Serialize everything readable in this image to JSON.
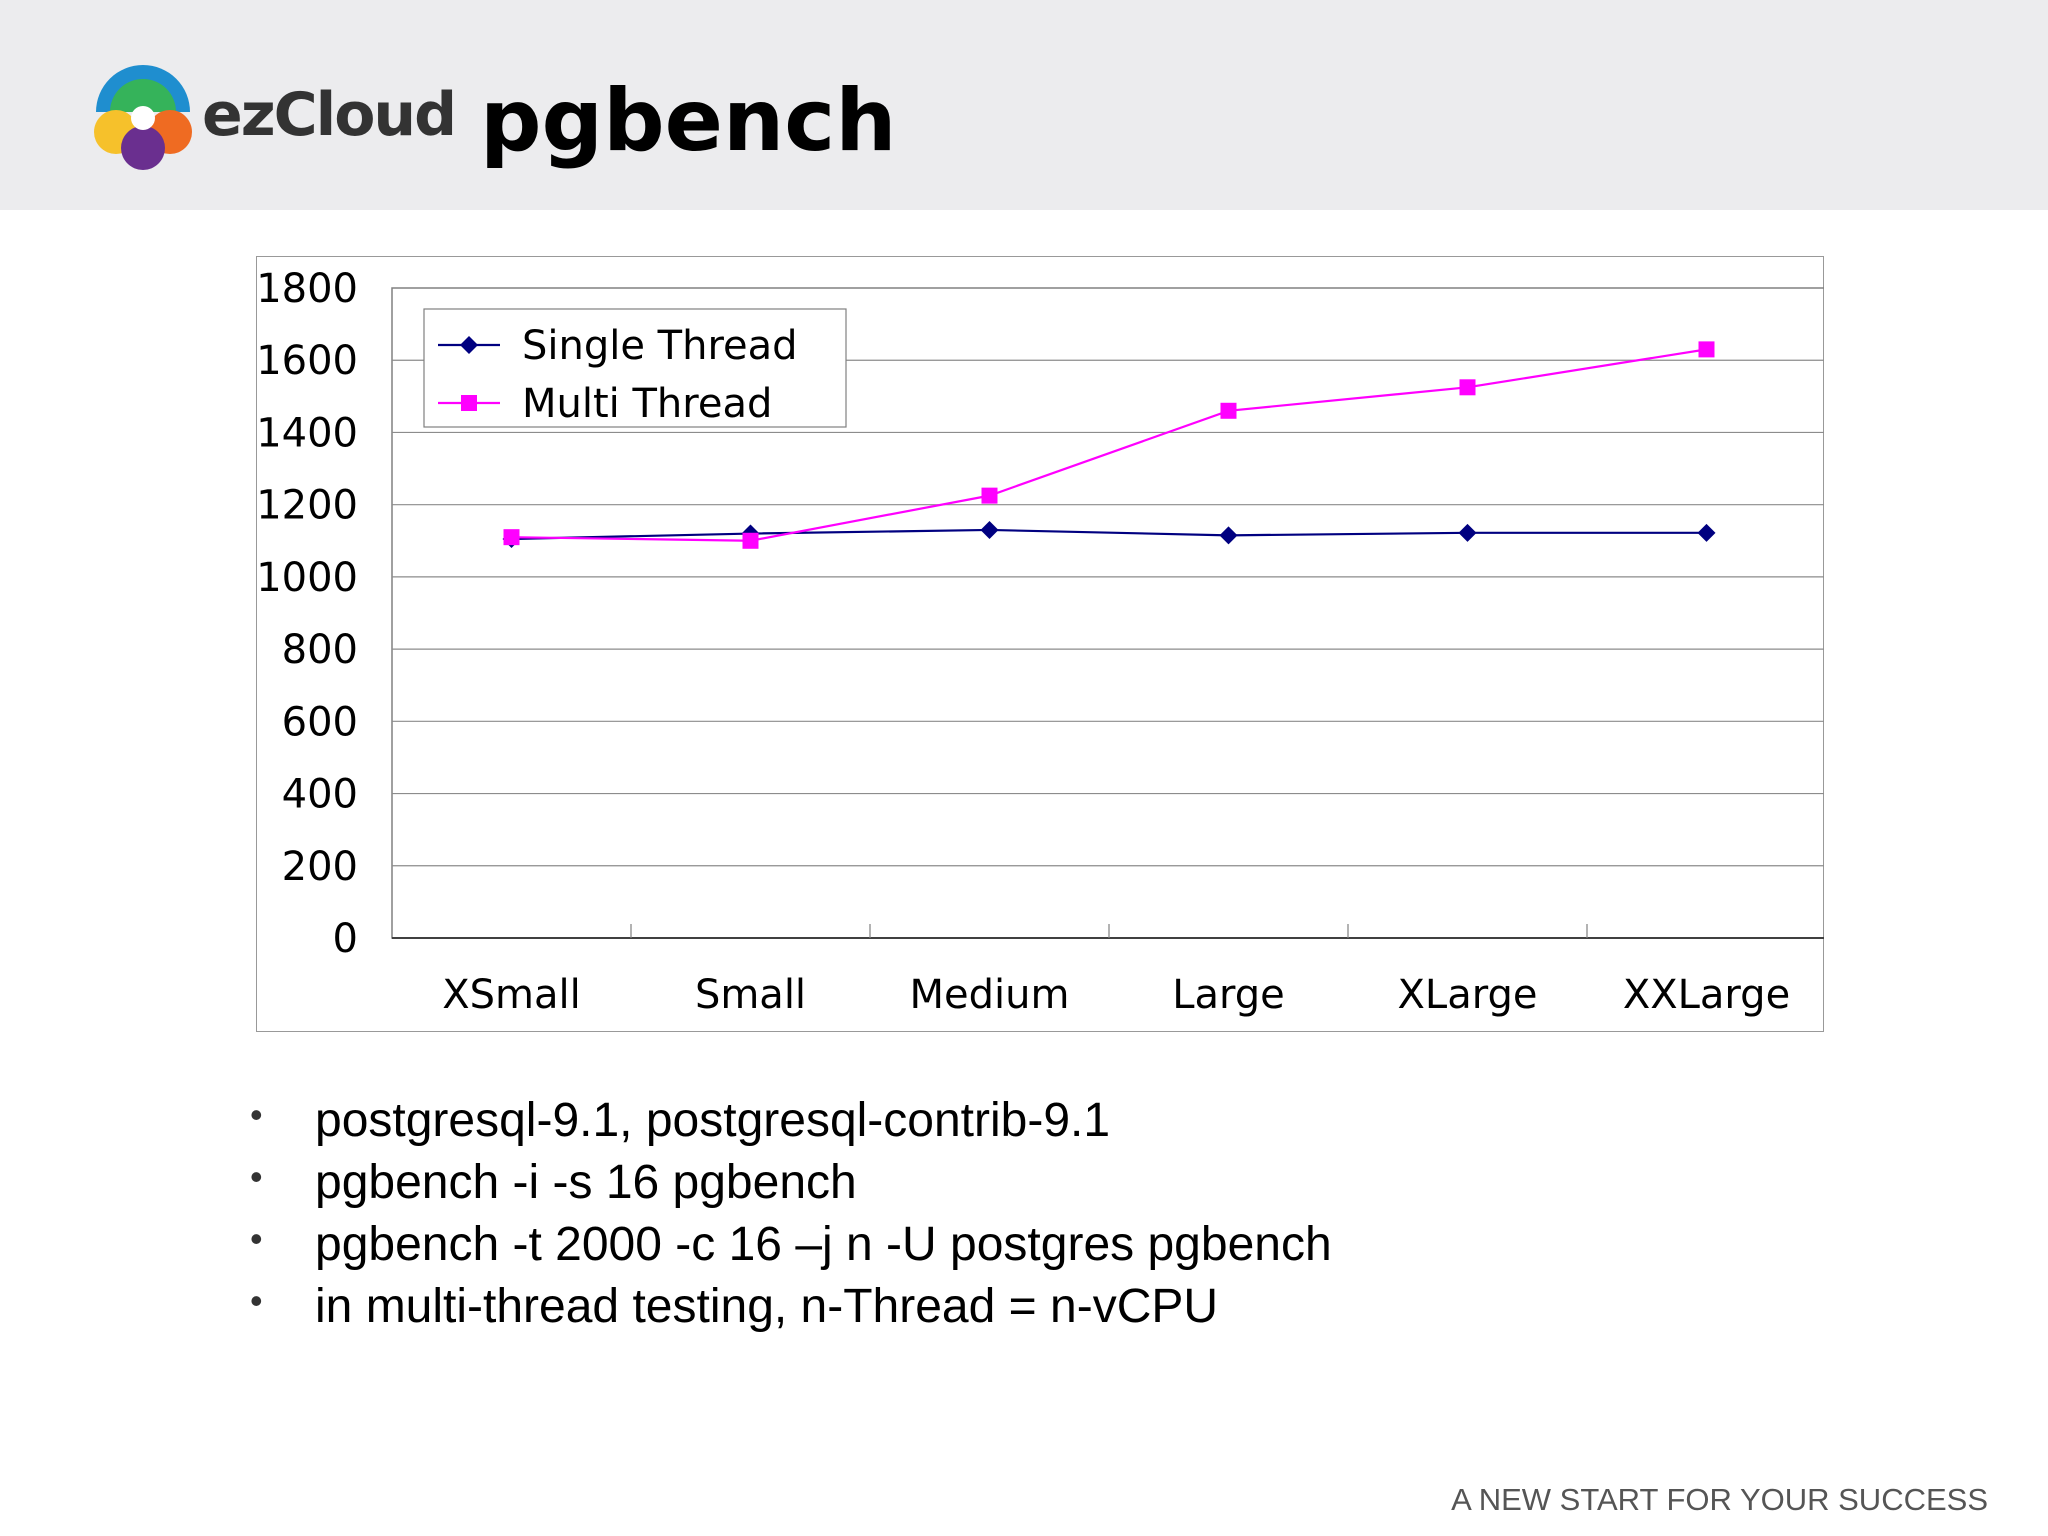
{
  "header": {
    "logo_text": "ezCloud",
    "title": "pgbench"
  },
  "colors": {
    "header_bg": "#ececee",
    "single_thread": "#000080",
    "multi_thread": "#ff00ff"
  },
  "chart_data": {
    "type": "line",
    "categories": [
      "XSmall",
      "Small",
      "Medium",
      "Large",
      "XLarge",
      "XXLarge"
    ],
    "series": [
      {
        "name": "Single Thread",
        "marker": "diamond",
        "values": [
          1105,
          1120,
          1130,
          1115,
          1122,
          1122
        ]
      },
      {
        "name": "Multi Thread",
        "marker": "square",
        "values": [
          1110,
          1100,
          1225,
          1460,
          1525,
          1630
        ]
      }
    ],
    "yticks": [
      0,
      200,
      400,
      600,
      800,
      1000,
      1200,
      1400,
      1600,
      1800
    ],
    "ylim": [
      0,
      1800
    ],
    "grid": true,
    "legend": "top-left"
  },
  "bullets": [
    "postgresql-9.1, postgresql-contrib-9.1",
    "pgbench -i -s 16 pgbench",
    "pgbench -t 2000 -c 16 –j n -U postgres pgbench",
    "in multi-thread testing, n-Thread = n-vCPU"
  ],
  "footer": {
    "tagline": "A NEW START FOR YOUR SUCCESS"
  }
}
